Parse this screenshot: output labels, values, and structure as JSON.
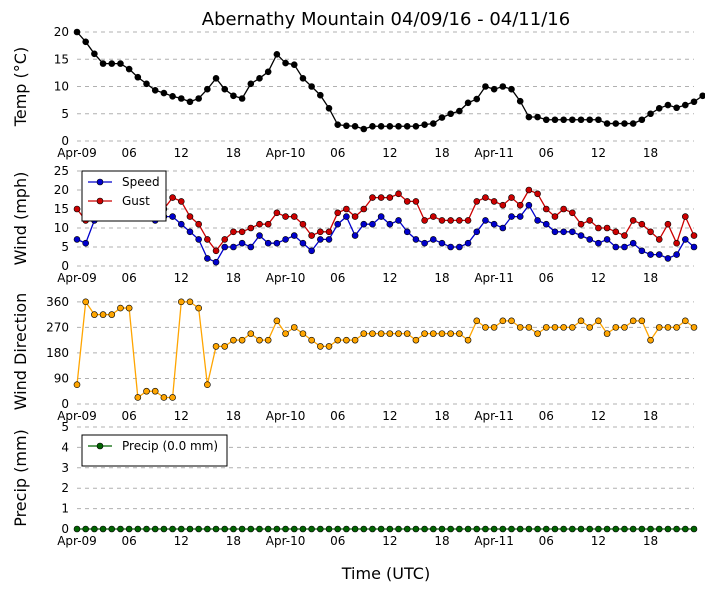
{
  "title": "Abernathy Mountain 04/09/16 - 04/11/16",
  "xlabel": "Time (UTC)",
  "x_tick_labels": [
    "Apr-09",
    "06",
    "12",
    "18",
    "Apr-10",
    "06",
    "12",
    "18",
    "Apr-11",
    "06",
    "12",
    "18"
  ],
  "chart_data": [
    {
      "id": "temp",
      "type": "line",
      "ylabel": "Temp (°C)",
      "ylim": [
        0,
        20
      ],
      "yticks": [
        0,
        5,
        10,
        15,
        20
      ],
      "x_unit": "hours since Apr-09 00:00 UTC",
      "x_start": 0,
      "x_step": 1,
      "series": [
        {
          "name": "Temp",
          "color": "#000000",
          "values": [
            20,
            18.2,
            16,
            14.2,
            14.2,
            14.2,
            13.2,
            11.7,
            10.5,
            9.3,
            8.8,
            8.2,
            7.8,
            7.2,
            7.8,
            9.5,
            11.5,
            9.5,
            8.3,
            7.8,
            10.5,
            11.5,
            12.7,
            15.9,
            14.3,
            14,
            11.5,
            10,
            8.4,
            6,
            3,
            2.8,
            2.7,
            2.2,
            2.7,
            2.7,
            2.7,
            2.7,
            2.7,
            2.7,
            3,
            3.2,
            4.3,
            5,
            5.5,
            7,
            7.7,
            10,
            9.5,
            10,
            9.5,
            7.3,
            4.4,
            4.4,
            3.9,
            3.9,
            3.9,
            3.9,
            3.9,
            3.9,
            3.9,
            3.2,
            3.2,
            3.2,
            3.2,
            3.9,
            5,
            6,
            6.6,
            6.1,
            6.6,
            7.2,
            8.3,
            8.3
          ]
        }
      ]
    },
    {
      "id": "wind",
      "type": "line",
      "ylabel": "Wind (mph)",
      "ylim": [
        0,
        25
      ],
      "yticks": [
        0,
        5,
        10,
        15,
        20,
        25
      ],
      "legend": "upper-left",
      "x_start": 0,
      "x_step": 1,
      "series": [
        {
          "name": "Speed",
          "color": "#0000cc",
          "values": [
            7,
            6,
            12,
            14,
            13,
            13,
            13,
            14,
            14,
            12,
            13,
            13,
            11,
            9,
            7,
            2,
            1,
            5,
            5,
            6,
            5,
            8,
            6,
            6,
            7,
            8,
            6,
            4,
            7,
            7,
            11,
            13,
            8,
            11,
            11,
            13,
            11,
            12,
            9,
            7,
            6,
            7,
            6,
            5,
            5,
            6,
            9,
            12,
            11,
            10,
            13,
            13,
            16,
            12,
            11,
            9,
            9,
            9,
            8,
            7,
            6,
            7,
            5,
            5,
            6,
            4,
            3,
            3,
            2,
            3,
            7,
            5
          ]
        },
        {
          "name": "Gust",
          "color": "#cc0000",
          "values": [
            15,
            12,
            13,
            14,
            15,
            15,
            15,
            15,
            15,
            15,
            15,
            18,
            17,
            13,
            11,
            7,
            4,
            7,
            9,
            9,
            10,
            11,
            11,
            14,
            13,
            13,
            11,
            8,
            9,
            9,
            14,
            15,
            13,
            15,
            18,
            18,
            18,
            19,
            17,
            17,
            12,
            13,
            12,
            12,
            12,
            12,
            17,
            18,
            17,
            16,
            18,
            16,
            20,
            19,
            15,
            13,
            15,
            14,
            11,
            12,
            10,
            10,
            9,
            8,
            12,
            11,
            9,
            7,
            11,
            6,
            13,
            8
          ]
        }
      ]
    },
    {
      "id": "wind_dir",
      "type": "scatter-line",
      "ylabel": "Wind Direction",
      "ylim": [
        0,
        370
      ],
      "yticks": [
        0,
        90,
        180,
        270,
        360
      ],
      "x_start": 0,
      "x_step": 1,
      "series": [
        {
          "name": "Direction",
          "color": "#ffa500",
          "values": [
            68,
            360,
            315,
            315,
            315,
            338,
            338,
            23,
            45,
            45,
            23,
            23,
            360,
            360,
            338,
            68,
            203,
            203,
            225,
            225,
            248,
            225,
            225,
            293,
            248,
            270,
            248,
            225,
            203,
            203,
            225,
            225,
            225,
            248,
            248,
            248,
            248,
            248,
            248,
            225,
            248,
            248,
            248,
            248,
            248,
            225,
            293,
            270,
            270,
            293,
            293,
            270,
            270,
            248,
            270,
            270,
            270,
            270,
            293,
            270,
            293,
            248,
            270,
            270,
            293,
            293,
            225,
            270,
            270,
            270,
            293,
            270
          ]
        }
      ]
    },
    {
      "id": "precip",
      "type": "line",
      "ylabel": "Precip (mm)",
      "ylim": [
        0,
        5
      ],
      "yticks": [
        0,
        1,
        2,
        3,
        4,
        5
      ],
      "legend": "upper-left",
      "x_start": 0,
      "x_step": 1,
      "series": [
        {
          "name": "Precip (0.0 mm)",
          "color": "#006400",
          "values": [
            0,
            0,
            0,
            0,
            0,
            0,
            0,
            0,
            0,
            0,
            0,
            0,
            0,
            0,
            0,
            0,
            0,
            0,
            0,
            0,
            0,
            0,
            0,
            0,
            0,
            0,
            0,
            0,
            0,
            0,
            0,
            0,
            0,
            0,
            0,
            0,
            0,
            0,
            0,
            0,
            0,
            0,
            0,
            0,
            0,
            0,
            0,
            0,
            0,
            0,
            0,
            0,
            0,
            0,
            0,
            0,
            0,
            0,
            0,
            0,
            0,
            0,
            0,
            0,
            0,
            0,
            0,
            0,
            0,
            0,
            0,
            0
          ]
        }
      ]
    }
  ]
}
